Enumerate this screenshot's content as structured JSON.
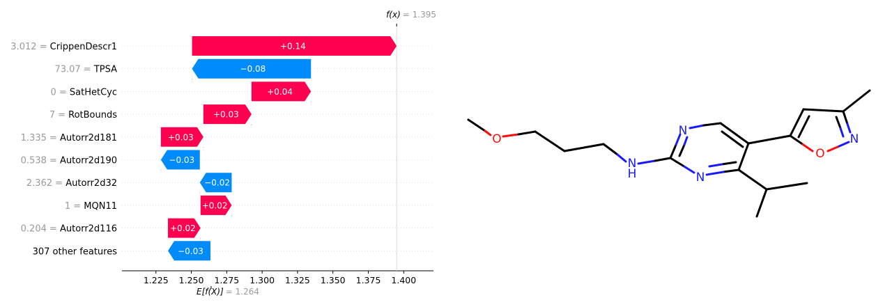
{
  "chart_data": {
    "type": "bar",
    "subtype": "shap-waterfall",
    "fx_label": "f(x)",
    "fx_value": 1.395,
    "base_label": "E[f(X)]",
    "base_value": 1.264,
    "xlim": [
      1.201,
      1.421
    ],
    "ticks": [
      "1.225",
      "1.250",
      "1.275",
      "1.300",
      "1.325",
      "1.350",
      "1.375",
      "1.400"
    ],
    "tick_values": [
      1.225,
      1.25,
      1.275,
      1.3,
      1.325,
      1.35,
      1.375,
      1.4
    ],
    "colors": {
      "positive": "#ff0051",
      "negative": "#008bfb",
      "guide": "#cccccc"
    },
    "features": [
      {
        "value": "3.012",
        "name": "CrippenDescr1",
        "start": 1.2505,
        "end": 1.395,
        "label": "+0.14"
      },
      {
        "value": "73.07",
        "name": "TPSA",
        "start": 1.3345,
        "end": 1.2505,
        "label": "−0.08"
      },
      {
        "value": "0",
        "name": "SatHetCyc",
        "start": 1.2925,
        "end": 1.3345,
        "label": "+0.04"
      },
      {
        "value": "7",
        "name": "RotBounds",
        "start": 1.2585,
        "end": 1.2925,
        "label": "+0.03"
      },
      {
        "value": "1.335",
        "name": "Autorr2d181",
        "start": 1.2285,
        "end": 1.2585,
        "label": "+0.03"
      },
      {
        "value": "0.538",
        "name": "Autorr2d190",
        "start": 1.256,
        "end": 1.2285,
        "label": "−0.03"
      },
      {
        "value": "2.362",
        "name": "Autorr2d32",
        "start": 1.2785,
        "end": 1.256,
        "label": "−0.02"
      },
      {
        "value": "1",
        "name": "MQN11",
        "start": 1.2565,
        "end": 1.2785,
        "label": "+0.02"
      },
      {
        "value": "0.204",
        "name": "Autorr2d116",
        "start": 1.2335,
        "end": 1.2565,
        "label": "+0.02"
      },
      {
        "value": "",
        "name": "307 other features",
        "start": 1.2635,
        "end": 1.2335,
        "label": "−0.03"
      }
    ]
  },
  "molecule": {
    "atoms": [
      {
        "symbol": "O",
        "color": "#ff0d0d"
      },
      {
        "symbol": "N",
        "color": "#1a1aff"
      },
      {
        "symbol": "H",
        "color": "#1a1aff"
      },
      {
        "symbol": "N",
        "color": "#1a1aff"
      },
      {
        "symbol": "N",
        "color": "#1a1aff"
      },
      {
        "symbol": "O",
        "color": "#ff0d0d"
      },
      {
        "symbol": "N",
        "color": "#1a1aff"
      }
    ]
  }
}
